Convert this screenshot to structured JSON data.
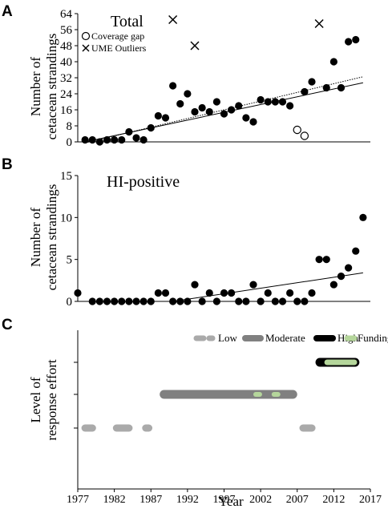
{
  "chart_data": [
    {
      "panel": "A",
      "type": "scatter",
      "title": "Total",
      "ylabel_lines": [
        "Number of",
        "cetacean strandings"
      ],
      "ylim": [
        0,
        64
      ],
      "yticks": [
        0,
        8,
        16,
        24,
        32,
        40,
        48,
        56,
        64
      ],
      "xlim": [
        1977,
        2017
      ],
      "legend": {
        "placement": "top-left",
        "entries": [
          "Coverage gap",
          "UME Outliers"
        ]
      },
      "series": [
        {
          "name": "",
          "marker": "filled-circle",
          "x": [
            1978,
            1979,
            1980,
            1981,
            1982,
            1983,
            1984,
            1985,
            1986,
            1987,
            1988,
            1989,
            1990,
            1991,
            1992,
            1993,
            1994,
            1995,
            1996,
            1997,
            1998,
            1999,
            2000,
            2001,
            2002,
            2003,
            2004,
            2005,
            2006,
            2008,
            2009,
            2011,
            2012,
            2013,
            2014,
            2015
          ],
          "y": [
            1,
            1,
            0,
            1,
            1,
            1,
            5,
            2,
            1,
            7,
            13,
            12,
            28,
            19,
            24,
            15,
            17,
            15,
            20,
            14,
            16,
            18,
            12,
            10,
            21,
            20,
            20,
            20,
            18,
            25,
            30,
            27,
            40,
            27,
            50,
            51
          ]
        },
        {
          "name": "Coverage gap",
          "marker": "open-circle",
          "x": [
            2007,
            2008
          ],
          "y": [
            6,
            3
          ]
        },
        {
          "name": "UME Outliers",
          "marker": "x",
          "x": [
            1990,
            1993,
            2010
          ],
          "y": [
            61,
            48,
            59
          ]
        }
      ],
      "trendlines": [
        {
          "style": "solid",
          "x": [
            1978,
            2016
          ],
          "y": [
            0,
            29.5
          ]
        },
        {
          "style": "dotted",
          "x": [
            1978,
            2016
          ],
          "y": [
            -0.5,
            32.5
          ]
        }
      ]
    },
    {
      "panel": "B",
      "type": "scatter",
      "title": "HI-positive",
      "ylabel_lines": [
        "Number of",
        "cetacean strandings"
      ],
      "ylim": [
        0,
        15
      ],
      "yticks": [
        0,
        5,
        10,
        15
      ],
      "xlim": [
        1977,
        2017
      ],
      "series": [
        {
          "name": "",
          "marker": "filled-circle",
          "x": [
            1977,
            1979,
            1980,
            1981,
            1982,
            1983,
            1984,
            1985,
            1986,
            1987,
            1988,
            1989,
            1990,
            1991,
            1992,
            1993,
            1994,
            1995,
            1996,
            1997,
            1998,
            1999,
            2000,
            2001,
            2002,
            2003,
            2004,
            2005,
            2006,
            2007,
            2008,
            2009,
            2010,
            2011,
            2012,
            2013,
            2014,
            2015,
            2016
          ],
          "y": [
            1,
            0,
            0,
            0,
            0,
            0,
            0,
            0,
            0,
            0,
            1,
            1,
            0,
            0,
            0,
            2,
            0,
            1,
            0,
            1,
            1,
            0,
            0,
            2,
            0,
            1,
            0,
            0,
            1,
            0,
            0,
            1,
            5,
            5,
            2,
            3,
            4,
            6,
            10
          ]
        }
      ],
      "trendlines": [
        {
          "style": "solid",
          "x": [
            1990,
            2016
          ],
          "y": [
            0,
            3.4
          ]
        }
      ]
    },
    {
      "panel": "C",
      "type": "bar",
      "ylabel_lines": [
        "Level of",
        "response effort"
      ],
      "xlabel": "Year",
      "xlim": [
        1977,
        2017
      ],
      "xticks": [
        1977,
        1982,
        1987,
        1992,
        1997,
        2002,
        2007,
        2012,
        2017
      ],
      "legend": {
        "placement": "top",
        "entries": [
          "Low",
          "Moderate",
          "High",
          "Funding"
        ]
      },
      "levels": [
        "Low",
        "Moderate",
        "High"
      ],
      "colors": {
        "Low": "#aaaaaa",
        "Moderate": "#808080",
        "High": "#000000",
        "Funding": "#b5d69b"
      },
      "segments": [
        {
          "level": "Low",
          "start": 1977.5,
          "end": 1979.5
        },
        {
          "level": "Low",
          "start": 1981.8,
          "end": 1984.5
        },
        {
          "level": "Low",
          "start": 1985.8,
          "end": 1987.2
        },
        {
          "level": "Low",
          "start": 2007.3,
          "end": 2009.5
        },
        {
          "level": "Moderate",
          "start": 1988.2,
          "end": 2007.0
        },
        {
          "level": "Funding",
          "on_level": "Moderate",
          "start": 2001.0,
          "end": 2002.2
        },
        {
          "level": "Funding",
          "on_level": "Moderate",
          "start": 2003.5,
          "end": 2004.7
        },
        {
          "level": "High",
          "start": 2009.5,
          "end": 2015.5
        },
        {
          "level": "Funding",
          "on_level": "High",
          "start": 2010.6,
          "end": 2015.3
        }
      ]
    }
  ],
  "figure": {
    "panel_letters": [
      "A",
      "B",
      "C"
    ],
    "xlabel": "Year"
  }
}
